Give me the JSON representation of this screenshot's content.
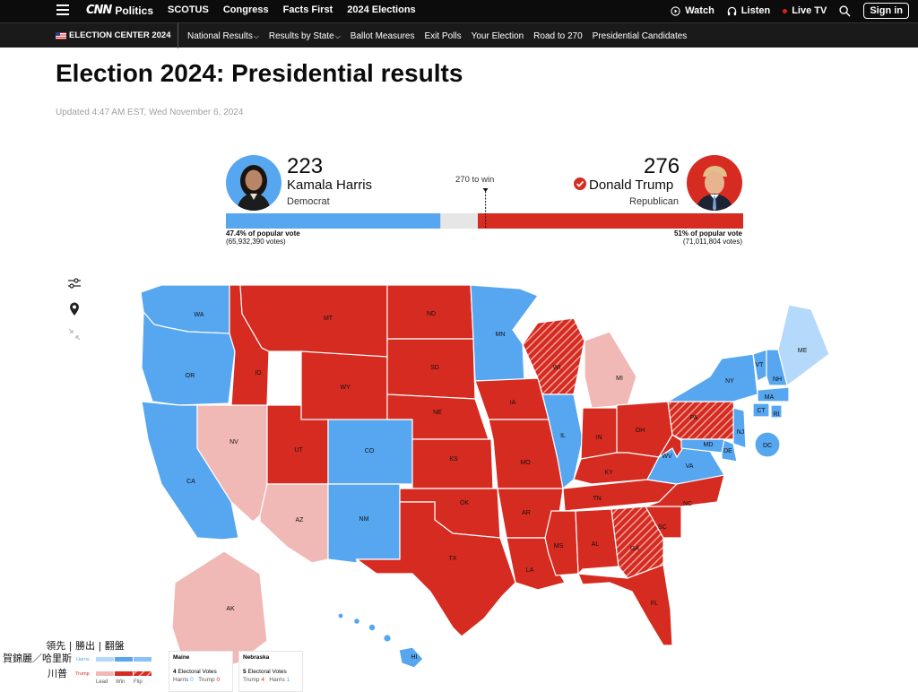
{
  "topbar": {
    "brand_cnn": "CNN",
    "brand_section": "Politics",
    "nav": [
      "SCOTUS",
      "Congress",
      "Facts First",
      "2024 Elections"
    ],
    "watch": "Watch",
    "listen": "Listen",
    "live_tv": "Live TV",
    "sign_in": "Sign in"
  },
  "subbar": {
    "election_center": "ELECTION CENTER 2024",
    "nav": [
      "National Results",
      "Results by State",
      "Ballot Measures",
      "Exit Polls",
      "Your Election",
      "Road to 270",
      "Presidential Candidates"
    ]
  },
  "page": {
    "title": "Election 2024: Presidential results",
    "updated": "Updated 4:47 AM EST, Wed November 6, 2024"
  },
  "race": {
    "to_win": "270 to win",
    "harris": {
      "electoral_votes": "223",
      "name": "Kamala Harris",
      "party": "Democrat",
      "popular_pct": "47.4% of popular vote",
      "popular_votes": "(65,932,390 votes)",
      "color": "#57a6f0"
    },
    "trump": {
      "electoral_votes": "276",
      "name": "Donald Trump",
      "party": "Republican",
      "popular_pct": "51% of popular vote",
      "popular_votes": "(71,011,804 votes)",
      "color": "#d62b20"
    },
    "bar": {
      "harris_ev": 223,
      "trump_ev": 276,
      "total": 538,
      "win": 270
    }
  },
  "map": {
    "colors": {
      "harris_win": "#57a6f0",
      "harris_lead": "#b5d9fa",
      "trump_win": "#d62b20",
      "trump_lead": "#f0b9b5"
    },
    "states": [
      {
        "label": "WA",
        "status": "harris_win"
      },
      {
        "label": "OR",
        "status": "harris_win"
      },
      {
        "label": "CA",
        "status": "harris_win"
      },
      {
        "label": "NV",
        "status": "trump_lead"
      },
      {
        "label": "ID",
        "status": "trump_win"
      },
      {
        "label": "MT",
        "status": "trump_win"
      },
      {
        "label": "WY",
        "status": "trump_win"
      },
      {
        "label": "UT",
        "status": "trump_win"
      },
      {
        "label": "CO",
        "status": "harris_win"
      },
      {
        "label": "AZ",
        "status": "trump_lead"
      },
      {
        "label": "NM",
        "status": "harris_win"
      },
      {
        "label": "ND",
        "status": "trump_win"
      },
      {
        "label": "SD",
        "status": "trump_win"
      },
      {
        "label": "NE",
        "status": "trump_win"
      },
      {
        "label": "KS",
        "status": "trump_win"
      },
      {
        "label": "OK",
        "status": "trump_win"
      },
      {
        "label": "TX",
        "status": "trump_win"
      },
      {
        "label": "MN",
        "status": "harris_win"
      },
      {
        "label": "IA",
        "status": "trump_win"
      },
      {
        "label": "MO",
        "status": "trump_win"
      },
      {
        "label": "AR",
        "status": "trump_win"
      },
      {
        "label": "LA",
        "status": "trump_win"
      },
      {
        "label": "WI",
        "status": "trump_flip"
      },
      {
        "label": "IL",
        "status": "harris_win"
      },
      {
        "label": "MI",
        "status": "trump_lead"
      },
      {
        "label": "IN",
        "status": "trump_win"
      },
      {
        "label": "OH",
        "status": "trump_win"
      },
      {
        "label": "KY",
        "status": "trump_win"
      },
      {
        "label": "TN",
        "status": "trump_win"
      },
      {
        "label": "MS",
        "status": "trump_win"
      },
      {
        "label": "AL",
        "status": "trump_win"
      },
      {
        "label": "GA",
        "status": "trump_flip"
      },
      {
        "label": "FL",
        "status": "trump_win"
      },
      {
        "label": "SC",
        "status": "trump_win"
      },
      {
        "label": "NC",
        "status": "trump_win"
      },
      {
        "label": "VA",
        "status": "harris_win"
      },
      {
        "label": "WV",
        "status": "trump_win"
      },
      {
        "label": "PA",
        "status": "trump_flip"
      },
      {
        "label": "NY",
        "status": "harris_win"
      },
      {
        "label": "VT",
        "status": "harris_win"
      },
      {
        "label": "NH",
        "status": "harris_win"
      },
      {
        "label": "ME",
        "status": "harris_lead"
      },
      {
        "label": "MA",
        "status": "harris_win"
      },
      {
        "label": "CT",
        "status": "harris_win"
      },
      {
        "label": "RI",
        "status": "harris_win"
      },
      {
        "label": "NJ",
        "status": "harris_win"
      },
      {
        "label": "DE",
        "status": "harris_win"
      },
      {
        "label": "MD",
        "status": "harris_win"
      },
      {
        "label": "DC",
        "status": "harris_win"
      },
      {
        "label": "AK",
        "status": "trump_lead"
      },
      {
        "label": "HI",
        "status": "harris_win"
      }
    ]
  },
  "legend": {
    "heading": "領先 | 勝出 | 翻盤",
    "harris_label": "賀錦麗／哈里斯",
    "trump_label": "川普",
    "harris_tag": "Harris",
    "trump_tag": "Trump",
    "lead": "Lead",
    "win": "Win",
    "flip": "Flip"
  },
  "maine": {
    "title": "Maine",
    "ev": "4",
    "ev_label": "Electoral Votes",
    "harris": "Harris",
    "harris_n": "0",
    "trump": "Trump",
    "trump_n": "0"
  },
  "nebraska": {
    "title": "Nebraska",
    "ev": "5",
    "ev_label": "Electoral Votes",
    "trump": "Trump",
    "trump_n": "4",
    "harris": "Harris",
    "harris_n": "1"
  }
}
